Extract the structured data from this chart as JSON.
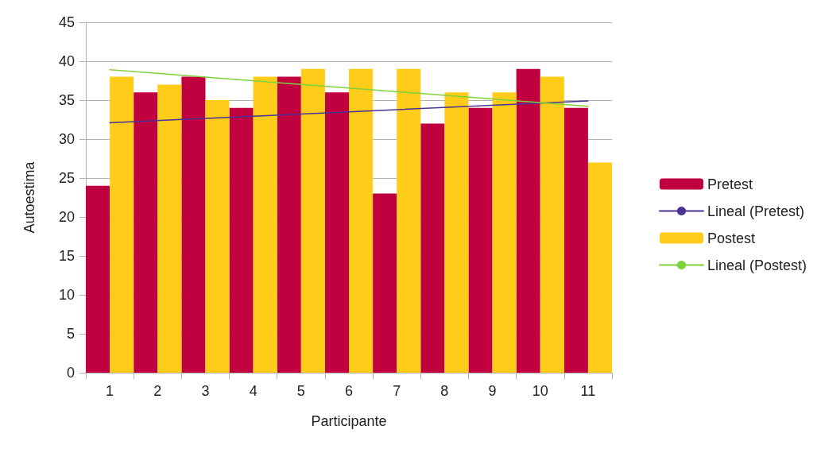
{
  "chart_data": {
    "type": "bar",
    "xlabel": "Participante",
    "ylabel": "Autoestima",
    "categories": [
      "1",
      "2",
      "3",
      "4",
      "5",
      "6",
      "7",
      "8",
      "9",
      "10",
      "11"
    ],
    "series": [
      {
        "name": "Pretest",
        "color": "#c0003f",
        "values": [
          24,
          36,
          38,
          34,
          38,
          36,
          23,
          32,
          34,
          39,
          34
        ]
      },
      {
        "name": "Lineal (Pretest)",
        "type": "line",
        "color": "#4b3295",
        "x": [
          "1",
          "11"
        ],
        "values": [
          32.1,
          34.9
        ],
        "marker": "none",
        "line_style": "solid"
      },
      {
        "name": "Postest",
        "color": "#ffcc1a",
        "values": [
          38,
          37,
          35,
          38,
          39,
          39,
          39,
          36,
          36,
          38,
          27
        ]
      },
      {
        "name": "Lineal (Postest)",
        "type": "line",
        "color": "#7fd13b",
        "x": [
          "1",
          "11"
        ],
        "values": [
          38.9,
          34.2
        ],
        "marker": "none",
        "line_style": "solid"
      }
    ],
    "ylim": [
      0,
      45
    ],
    "yticks": [
      0,
      5,
      10,
      15,
      20,
      25,
      30,
      35,
      40,
      45
    ],
    "grid": "y",
    "legend": "right"
  }
}
